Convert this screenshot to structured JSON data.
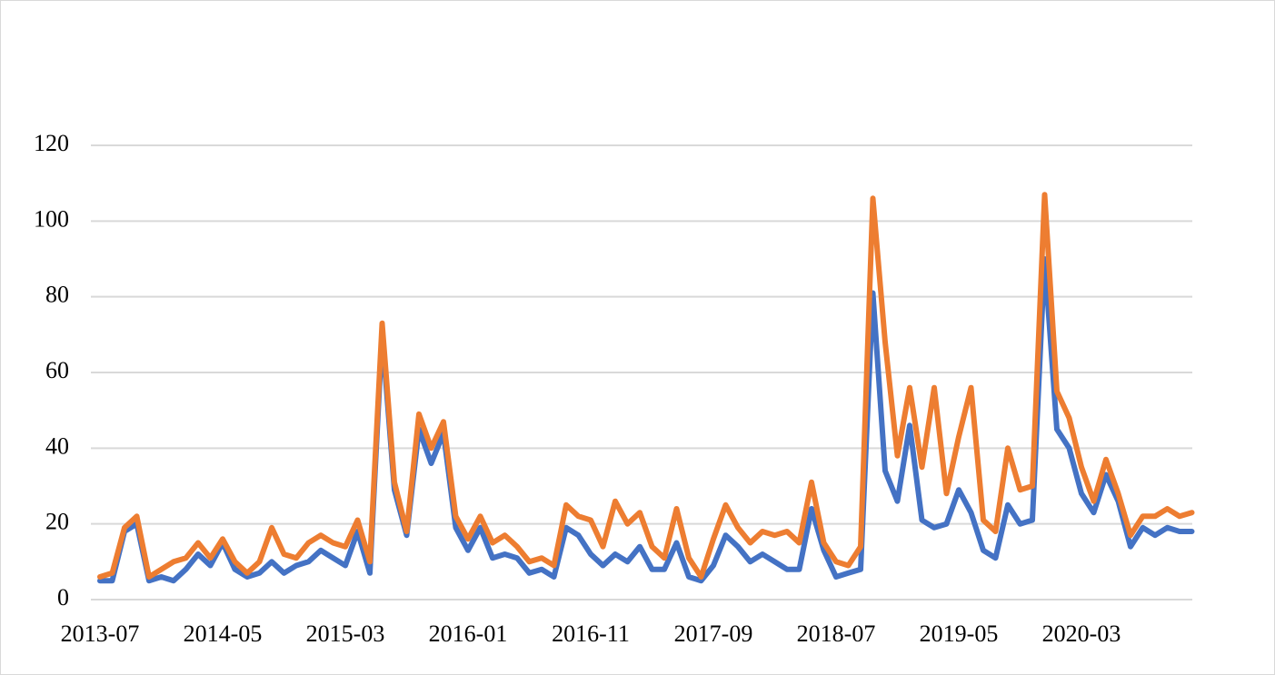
{
  "chart_data": {
    "type": "line",
    "categories": [
      "2013-07",
      null,
      null,
      null,
      null,
      null,
      null,
      null,
      null,
      null,
      "2014-05",
      null,
      null,
      null,
      null,
      null,
      null,
      null,
      null,
      null,
      "2015-03",
      null,
      null,
      null,
      null,
      null,
      null,
      null,
      null,
      null,
      "2016-01",
      null,
      null,
      null,
      null,
      null,
      null,
      null,
      null,
      null,
      "2016-11",
      null,
      null,
      null,
      null,
      null,
      null,
      null,
      null,
      null,
      "2017-09",
      null,
      null,
      null,
      null,
      null,
      null,
      null,
      null,
      null,
      "2018-07",
      null,
      null,
      null,
      null,
      null,
      null,
      null,
      null,
      null,
      "2019-05",
      null,
      null,
      null,
      null,
      null,
      null,
      null,
      null,
      null,
      "2020-03",
      null,
      null,
      null,
      null,
      null,
      null,
      null,
      null,
      null
    ],
    "series": [
      {
        "color": "#4472c4",
        "values": [
          5,
          5,
          18,
          20,
          5,
          6,
          5,
          8,
          12,
          9,
          15,
          8,
          6,
          7,
          10,
          7,
          9,
          10,
          13,
          11,
          9,
          18,
          7,
          70,
          29,
          17,
          45,
          36,
          44,
          19,
          13,
          19,
          11,
          12,
          11,
          7,
          8,
          6,
          19,
          17,
          12,
          9,
          12,
          10,
          14,
          8,
          8,
          15,
          6,
          5,
          9,
          17,
          14,
          10,
          12,
          10,
          8,
          8,
          24,
          13,
          6,
          7,
          8,
          81,
          34,
          26,
          46,
          21,
          19,
          20,
          29,
          23,
          13,
          11,
          25,
          20,
          21,
          90,
          45,
          40,
          28,
          23,
          33,
          26,
          14,
          19,
          17,
          19,
          18,
          18
        ]
      },
      {
        "color": "#ed7d31",
        "values": [
          6,
          7,
          19,
          22,
          6,
          8,
          10,
          11,
          15,
          11,
          16,
          10,
          7,
          10,
          19,
          12,
          11,
          15,
          17,
          15,
          14,
          21,
          10,
          73,
          31,
          18,
          49,
          40,
          47,
          22,
          16,
          22,
          15,
          17,
          14,
          10,
          11,
          9,
          25,
          22,
          21,
          14,
          26,
          20,
          23,
          14,
          11,
          24,
          11,
          6,
          16,
          25,
          19,
          15,
          18,
          17,
          18,
          15,
          31,
          15,
          10,
          9,
          14,
          106,
          68,
          38,
          56,
          35,
          56,
          28,
          43,
          56,
          21,
          18,
          40,
          29,
          30,
          107,
          55,
          48,
          35,
          26,
          37,
          28,
          17,
          22,
          22,
          24,
          22,
          23
        ]
      }
    ],
    "ylim": [
      0,
      120
    ],
    "yticks": [
      0,
      20,
      40,
      60,
      80,
      100,
      120
    ],
    "grid": true
  }
}
